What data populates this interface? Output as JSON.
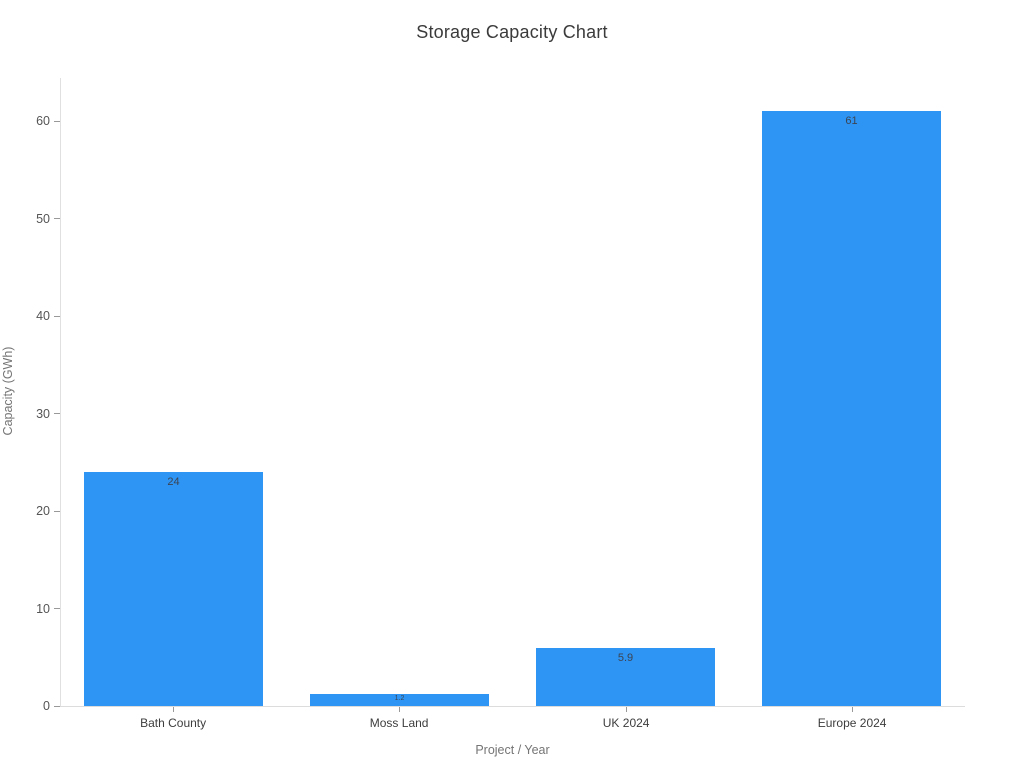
{
  "title": "Storage Capacity Chart",
  "chart_data": {
    "type": "bar",
    "title": "Storage Capacity Chart",
    "categories": [
      "Bath County",
      "Moss Land",
      "UK 2024",
      "Europe 2024"
    ],
    "values": [
      24,
      1.2,
      5.9,
      61
    ],
    "value_labels": [
      "24",
      "1.2",
      "5.9",
      "61"
    ],
    "xlabel": "Project / Year",
    "ylabel": "Capacity (GWh)",
    "ylim": [
      0,
      64.4
    ],
    "yticks": [
      0,
      10,
      20,
      30,
      40,
      50,
      60
    ],
    "grid": false,
    "legend": "none",
    "bar_color": "#2E95F5",
    "value_label_color": "#3c4452",
    "axis_line_color": "#dedede",
    "tick_color": "#999999"
  }
}
